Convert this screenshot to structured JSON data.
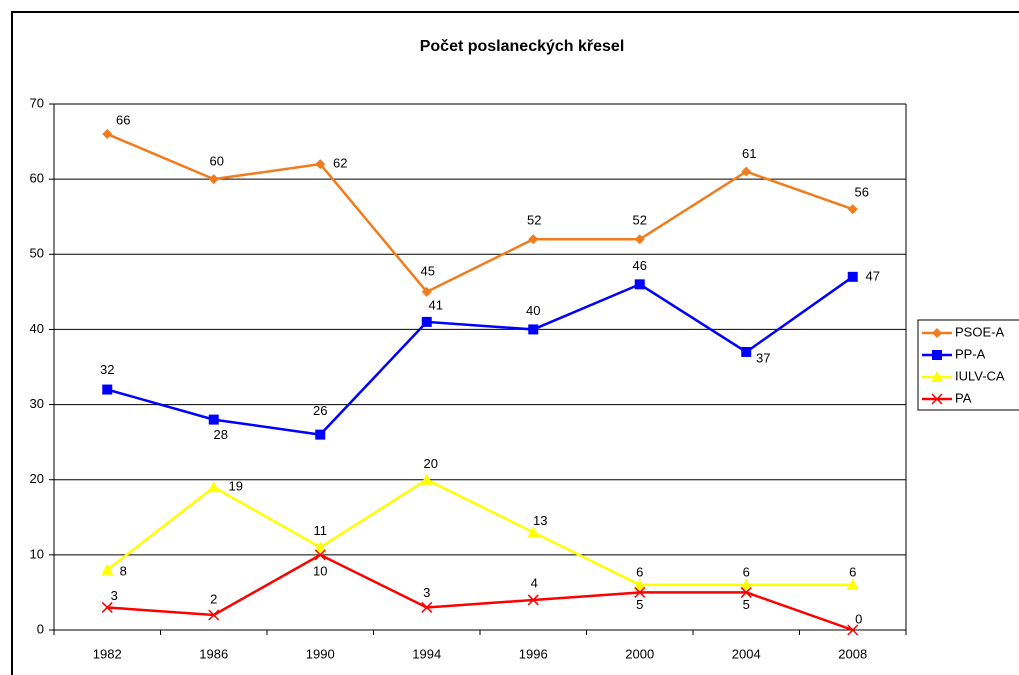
{
  "chart_data": {
    "type": "line",
    "title": "Počet poslaneckých křesel",
    "categories": [
      "1982",
      "1986",
      "1990",
      "1994",
      "1996",
      "2000",
      "2004",
      "2008"
    ],
    "series": [
      {
        "name": "PSOE-A",
        "color": "#f07c1e",
        "marker": "diamond",
        "values": [
          66,
          60,
          62,
          45,
          52,
          52,
          61,
          56
        ]
      },
      {
        "name": "PP-A",
        "color": "#0000ff",
        "marker": "square",
        "values": [
          32,
          28,
          26,
          41,
          40,
          46,
          37,
          47
        ]
      },
      {
        "name": "IULV-CA",
        "color": "#ffff00",
        "marker": "triangle",
        "values": [
          8,
          19,
          11,
          20,
          13,
          6,
          6,
          6
        ]
      },
      {
        "name": "PA",
        "color": "#ff0000",
        "marker": "x",
        "values": [
          3,
          2,
          10,
          3,
          4,
          5,
          5,
          0
        ]
      }
    ],
    "ylim": [
      0,
      70
    ],
    "yticks": [
      0,
      10,
      20,
      30,
      40,
      50,
      60,
      70
    ],
    "grid": true,
    "legend": "right"
  }
}
